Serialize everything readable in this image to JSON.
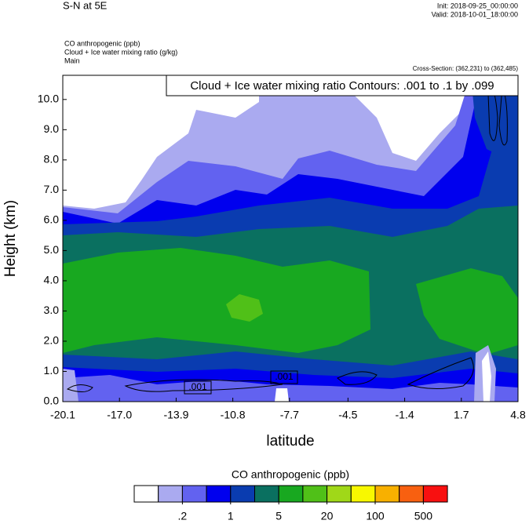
{
  "header": {
    "title": "S-N at 5E",
    "init": "Init: 2018-09-25_00:00:00",
    "valid": "Valid: 2018-10-01_18:00:00",
    "fields": [
      "CO anthropogenic   (ppb)",
      "Cloud + Ice water mixing ratio   (g/kg)",
      "Main"
    ],
    "cross_section": "Cross-Section: (362,231) to (362,485)"
  },
  "chart_data": {
    "type": "contour",
    "contour_title": "Cloud + Ice water mixing ratio Contours: .001 to .1 by .099",
    "contour_labels": [
      ".001",
      ".001"
    ],
    "x_label": "latitude",
    "y_label": "Height (km)",
    "xlim": [
      -20.1,
      4.8
    ],
    "xticks": [
      -20.1,
      {
        "value": -17.0,
        "label": "-17.0"
      },
      -13.9,
      -10.8,
      -7.7,
      -4.5,
      -1.4,
      1.7,
      4.8
    ],
    "ylim": [
      0,
      10.8
    ],
    "yticks": [
      {
        "value": 0,
        "label": "0.0"
      },
      {
        "value": 1,
        "label": "1.0"
      },
      {
        "value": 2,
        "label": "2.0"
      },
      {
        "value": 3,
        "label": "3.0"
      },
      {
        "value": 4,
        "label": "4.0"
      },
      {
        "value": 5,
        "label": "5.0"
      },
      {
        "value": 6,
        "label": "6.0"
      },
      {
        "value": 7,
        "label": "7.0"
      },
      {
        "value": 8,
        "label": "8.0"
      },
      {
        "value": 9,
        "label": "9.0"
      },
      {
        "value": 10,
        "label": "10.0"
      }
    ],
    "colorbar": {
      "title": "CO anthropogenic  (ppb)",
      "colors": [
        "#ffffff",
        "#aaaaf0",
        "#6262f0",
        "#0000ee",
        "#0a3cb0",
        "#0a7060",
        "#18a820",
        "#50c018",
        "#a0d818",
        "#f8f800",
        "#f8b000",
        "#f86010",
        "#f81010"
      ],
      "ticks": [
        {
          "value": 0.2,
          "label": ".2"
        },
        1,
        5,
        20,
        100,
        500
      ]
    }
  }
}
